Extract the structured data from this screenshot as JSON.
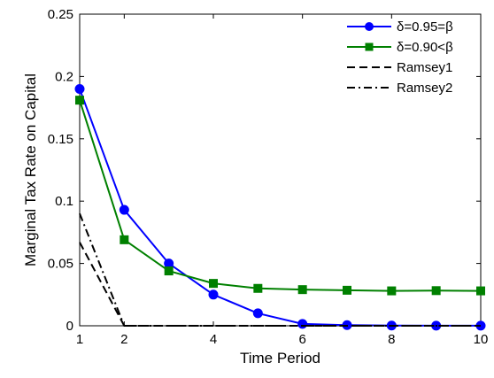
{
  "chart_data": {
    "type": "line",
    "title": "",
    "xlabel": "Time Period",
    "ylabel": "Marginal Tax Rate on Capital",
    "xlim": [
      1,
      10
    ],
    "ylim": [
      0,
      0.25
    ],
    "xticks": [
      1,
      2,
      4,
      6,
      8,
      10
    ],
    "xtick_labels": [
      "1",
      "2",
      "4",
      "6",
      "8",
      "10"
    ],
    "yticks": [
      0,
      0.05,
      0.1,
      0.15,
      0.2,
      0.25
    ],
    "ytick_labels": [
      "0",
      "0.05",
      "0.1",
      "0.15",
      "0.2",
      "0.25"
    ],
    "grid": false,
    "legend_position": "top-right",
    "series": [
      {
        "name": "δ=0.95=β",
        "color": "#0000ff",
        "line_style": "solid",
        "marker": "circle",
        "x": [
          1,
          2,
          3,
          4,
          5,
          6,
          7,
          8,
          9,
          10
        ],
        "y": [
          0.19,
          0.093,
          0.05,
          0.025,
          0.01,
          0.0015,
          0.0005,
          0.0002,
          0.0001,
          0.0001
        ]
      },
      {
        "name": "δ=0.90<β",
        "color": "#008000",
        "line_style": "solid",
        "marker": "square",
        "x": [
          1,
          2,
          3,
          4,
          5,
          6,
          7,
          8,
          9,
          10
        ],
        "y": [
          0.181,
          0.069,
          0.044,
          0.034,
          0.03,
          0.029,
          0.0285,
          0.028,
          0.0282,
          0.028
        ]
      },
      {
        "name": "Ramsey1",
        "color": "#000000",
        "line_style": "dashed",
        "marker": "none",
        "x": [
          1,
          2,
          3,
          4,
          5,
          6,
          7,
          8,
          9,
          10
        ],
        "y": [
          0.067,
          0,
          0,
          0,
          0,
          0,
          0,
          0,
          0,
          0
        ]
      },
      {
        "name": "Ramsey2",
        "color": "#000000",
        "line_style": "dashdot",
        "marker": "none",
        "x": [
          1,
          2,
          3,
          4,
          5,
          6,
          7,
          8,
          9,
          10
        ],
        "y": [
          0.09,
          0,
          0,
          0,
          0,
          0,
          0,
          0,
          0,
          0
        ]
      }
    ]
  }
}
